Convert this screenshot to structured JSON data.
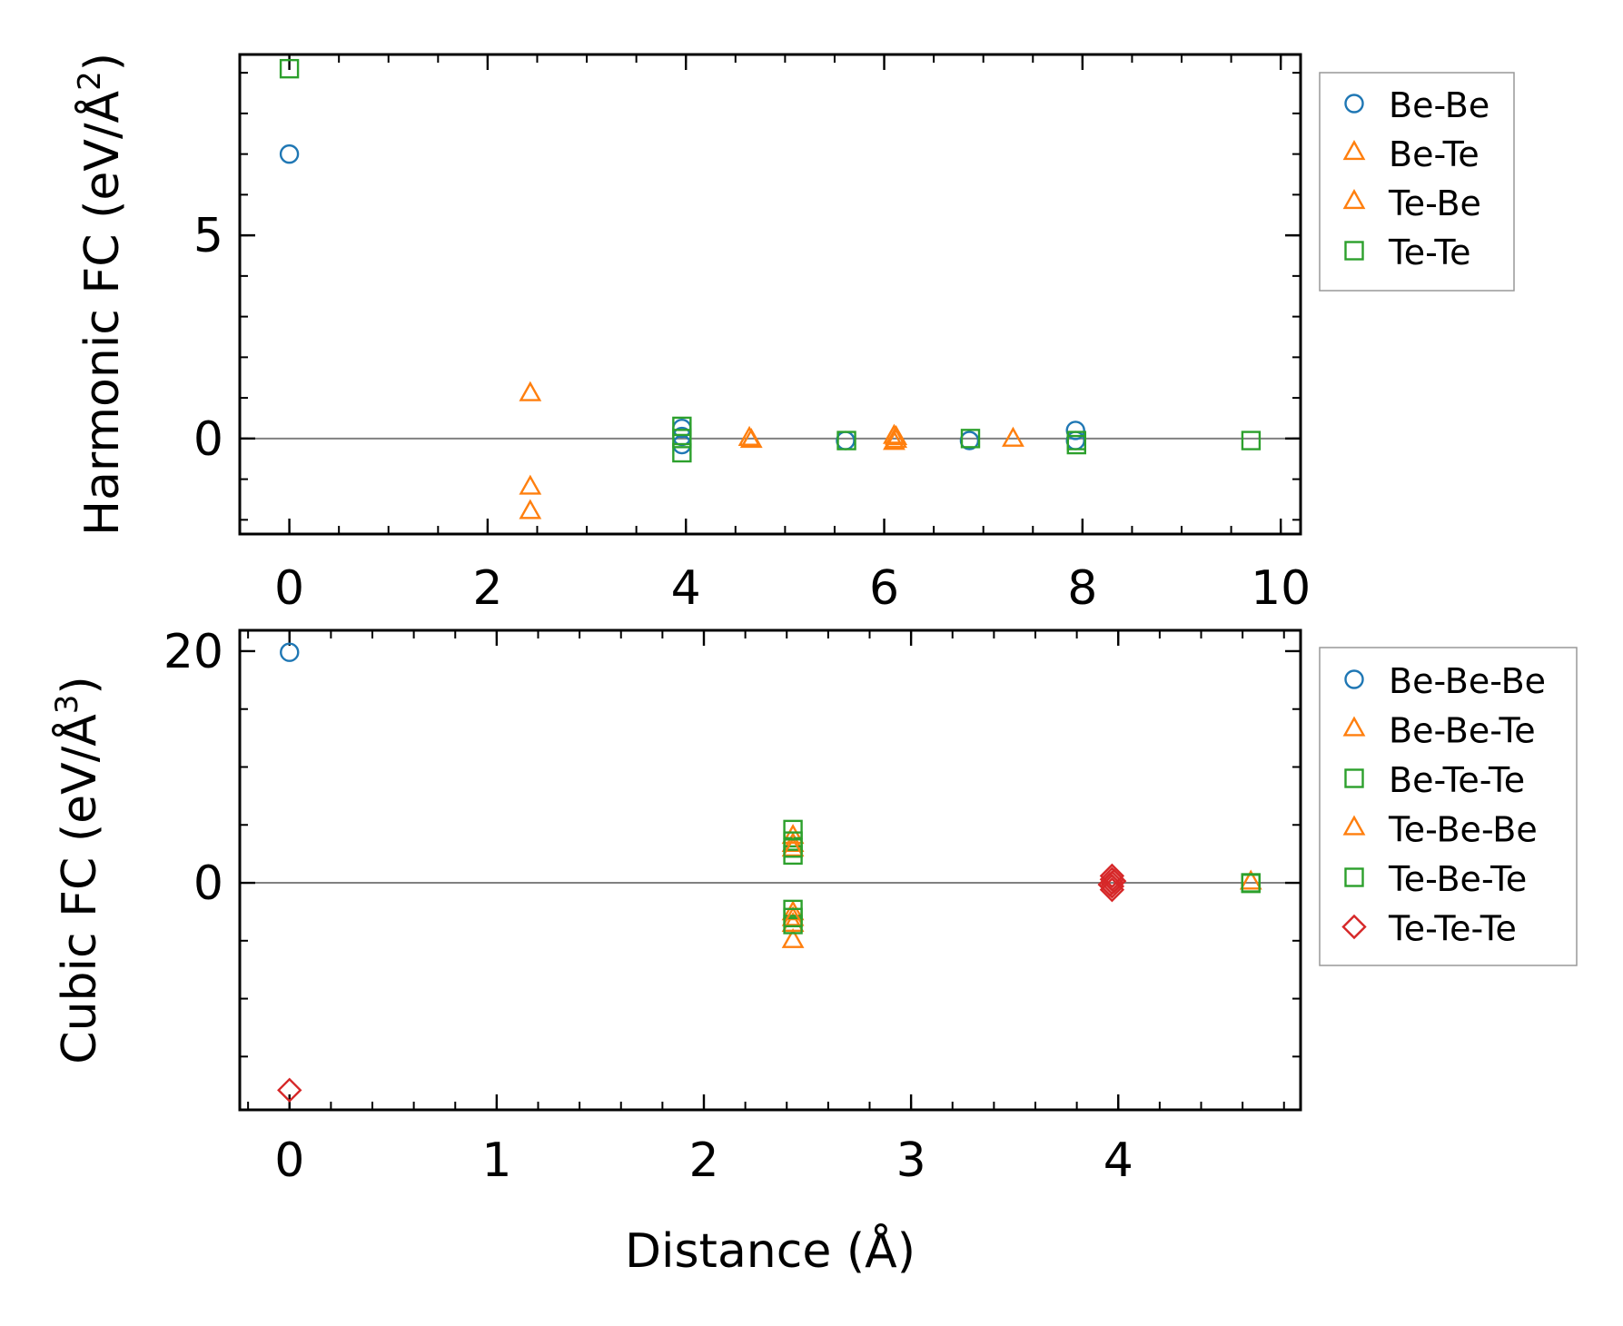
{
  "chart_data": [
    {
      "type": "scatter",
      "ylabel": "Harmonic FC (eV/Å²)",
      "ylabel_main": "Harmonic FC (eV/Å",
      "ylabel_sup": "2",
      "ylabel_end": ")",
      "xlabel": "",
      "xlim": [
        -0.5,
        10.2
      ],
      "ylim": [
        -2.35,
        9.45
      ],
      "xticks": [
        {
          "v": 0,
          "label": "0"
        },
        {
          "v": 2,
          "label": "2"
        },
        {
          "v": 4,
          "label": "4"
        },
        {
          "v": 6,
          "label": "6"
        },
        {
          "v": 8,
          "label": "8"
        },
        {
          "v": 10,
          "label": "10"
        }
      ],
      "yticks": [
        {
          "v": 0,
          "label": "0"
        },
        {
          "v": 5,
          "label": "5"
        }
      ],
      "x_minor_step": 0.5,
      "y_minor_step": 1,
      "zero_line": true,
      "legend_position": "outside-right-top",
      "series": [
        {
          "name": "Be-Be",
          "marker": "circle",
          "color": "#1f77b4",
          "points": [
            [
              0,
              7.0
            ],
            [
              3.96,
              0.25
            ],
            [
              3.96,
              0.05
            ],
            [
              3.96,
              -0.15
            ],
            [
              5.61,
              -0.05
            ],
            [
              6.86,
              -0.05
            ],
            [
              7.93,
              0.2
            ],
            [
              7.93,
              -0.05
            ]
          ]
        },
        {
          "name": "Be-Te",
          "marker": "triangle",
          "color": "#ff7f0e",
          "points": [
            [
              2.43,
              1.1
            ],
            [
              2.43,
              -1.2
            ],
            [
              2.43,
              -1.8
            ],
            [
              4.64,
              0.0
            ],
            [
              6.1,
              0.05
            ],
            [
              6.1,
              -0.1
            ],
            [
              7.3,
              -0.02
            ]
          ]
        },
        {
          "name": "Te-Be",
          "marker": "triangle",
          "color": "#ff7f0e",
          "points": [
            [
              4.66,
              -0.05
            ],
            [
              6.12,
              -0.05
            ],
            [
              6.12,
              0.02
            ]
          ]
        },
        {
          "name": "Te-Te",
          "marker": "square",
          "color": "#2ca02c",
          "points": [
            [
              0,
              9.1
            ],
            [
              3.96,
              0.3
            ],
            [
              3.96,
              0.0
            ],
            [
              3.96,
              -0.35
            ],
            [
              5.62,
              -0.05
            ],
            [
              6.87,
              0.0
            ],
            [
              7.94,
              -0.05
            ],
            [
              7.94,
              -0.15
            ],
            [
              9.7,
              -0.05
            ]
          ]
        }
      ]
    },
    {
      "type": "scatter",
      "ylabel": "Cubic FC (eV/Å³)",
      "ylabel_main": "Cubic FC (eV/Å",
      "ylabel_sup": "3",
      "ylabel_end": ")",
      "xlabel": "Distance (Å)",
      "xlim": [
        -0.24,
        4.88
      ],
      "ylim": [
        -19.6,
        21.8
      ],
      "xticks": [
        {
          "v": 0,
          "label": "0"
        },
        {
          "v": 1,
          "label": "1"
        },
        {
          "v": 2,
          "label": "2"
        },
        {
          "v": 3,
          "label": "3"
        },
        {
          "v": 4,
          "label": "4"
        }
      ],
      "yticks": [
        {
          "v": 0,
          "label": "0"
        },
        {
          "v": 20,
          "label": "20"
        }
      ],
      "x_minor_step": 0.2,
      "y_minor_step": 5,
      "zero_line": true,
      "legend_position": "outside-right-top",
      "series": [
        {
          "name": "Be-Be-Be",
          "marker": "circle",
          "color": "#1f77b4",
          "points": [
            [
              0,
              19.9
            ]
          ]
        },
        {
          "name": "Be-Be-Te",
          "marker": "triangle",
          "color": "#ff7f0e",
          "points": [
            [
              2.43,
              4.0
            ],
            [
              2.43,
              3.3
            ],
            [
              2.43,
              -2.6
            ],
            [
              2.43,
              -3.6
            ],
            [
              2.43,
              -5.0
            ],
            [
              4.64,
              0.05
            ]
          ]
        },
        {
          "name": "Be-Te-Te",
          "marker": "square",
          "color": "#2ca02c",
          "points": [
            [
              2.43,
              4.6
            ],
            [
              2.43,
              3.6
            ],
            [
              2.43,
              2.4
            ],
            [
              2.43,
              -2.3
            ],
            [
              2.43,
              -3.6
            ],
            [
              4.64,
              0.0
            ]
          ]
        },
        {
          "name": "Te-Be-Be",
          "marker": "triangle",
          "color": "#ff7f0e",
          "points": [
            [
              2.43,
              2.9
            ],
            [
              2.43,
              -3.1
            ]
          ]
        },
        {
          "name": "Te-Be-Te",
          "marker": "square",
          "color": "#2ca02c",
          "points": [
            [
              2.43,
              3.0
            ],
            [
              2.43,
              -3.0
            ],
            [
              4.64,
              -0.05
            ]
          ]
        },
        {
          "name": "Te-Te-Te",
          "marker": "diamond",
          "color": "#d62728",
          "points": [
            [
              0,
              -17.9
            ],
            [
              3.97,
              0.6
            ],
            [
              3.97,
              0.3
            ],
            [
              3.97,
              0.0
            ],
            [
              3.97,
              -0.3
            ],
            [
              3.97,
              -0.6
            ],
            [
              3.98,
              0.15
            ],
            [
              3.96,
              -0.15
            ]
          ]
        }
      ]
    }
  ]
}
